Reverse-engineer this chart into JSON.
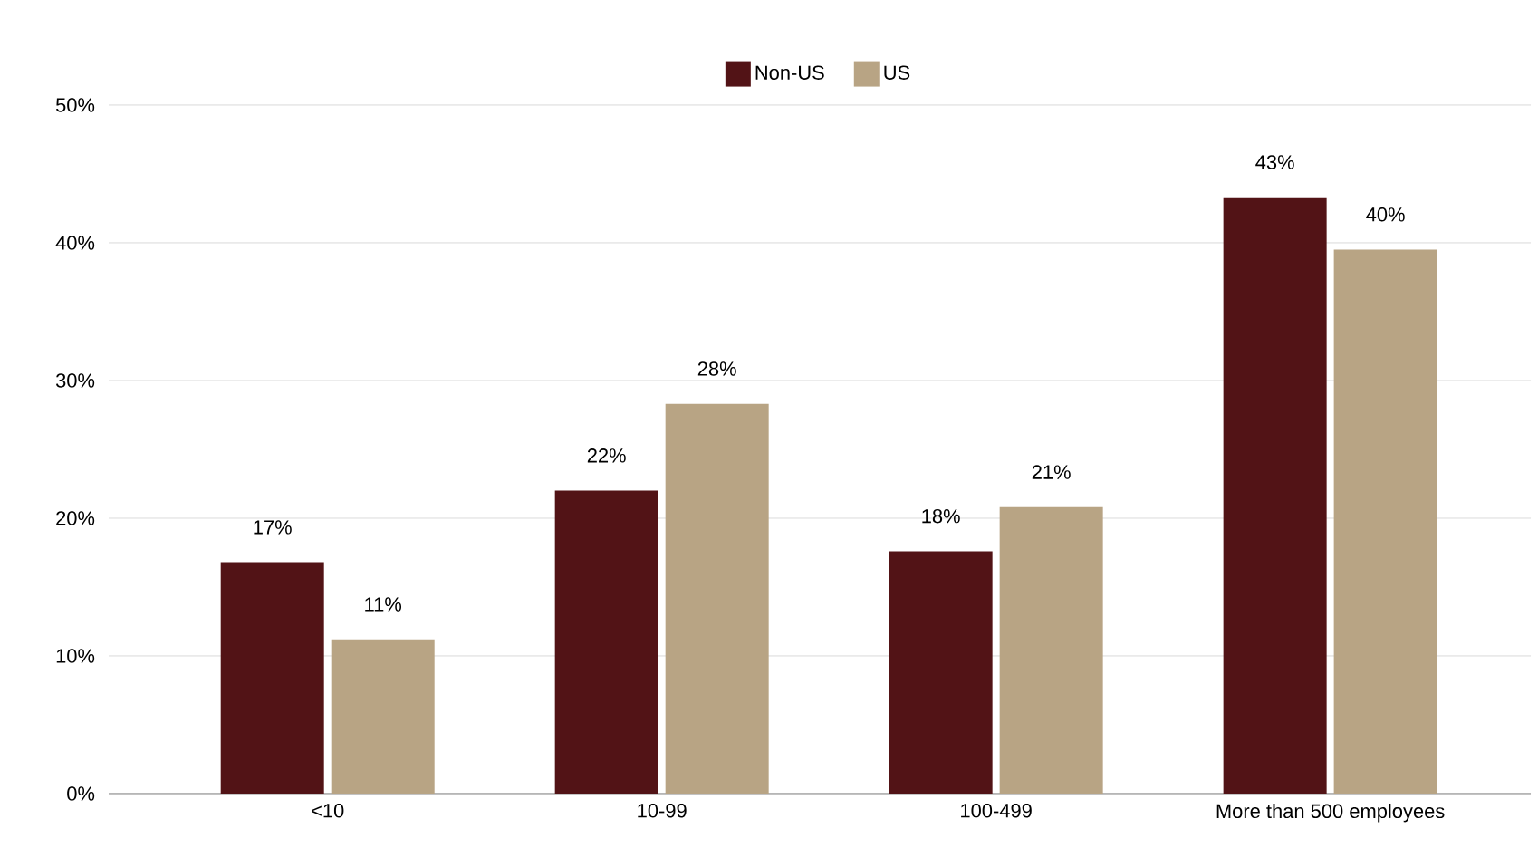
{
  "chart_data": {
    "type": "bar",
    "categories": [
      "<10",
      "10-99",
      "100-499",
      "More than 500 employees"
    ],
    "series": [
      {
        "name": "Non-US",
        "color": "#521316",
        "values": [
          16.8,
          22,
          17.6,
          43.3
        ],
        "value_labels": [
          "17%",
          "22%",
          "18%",
          "43%"
        ]
      },
      {
        "name": "US",
        "color": "#b8a484",
        "values": [
          11.2,
          28.3,
          20.8,
          39.5
        ],
        "value_labels": [
          "11%",
          "28%",
          "21%",
          "40%"
        ]
      }
    ],
    "ylim": [
      0,
      50
    ],
    "yticks": [
      {
        "value": 0,
        "label": "0%"
      },
      {
        "value": 10,
        "label": "10%"
      },
      {
        "value": 20,
        "label": "20%"
      },
      {
        "value": 30,
        "label": "30%"
      },
      {
        "value": 40,
        "label": "40%"
      },
      {
        "value": 50,
        "label": "50%"
      }
    ],
    "grid": "y",
    "legend": "top"
  }
}
